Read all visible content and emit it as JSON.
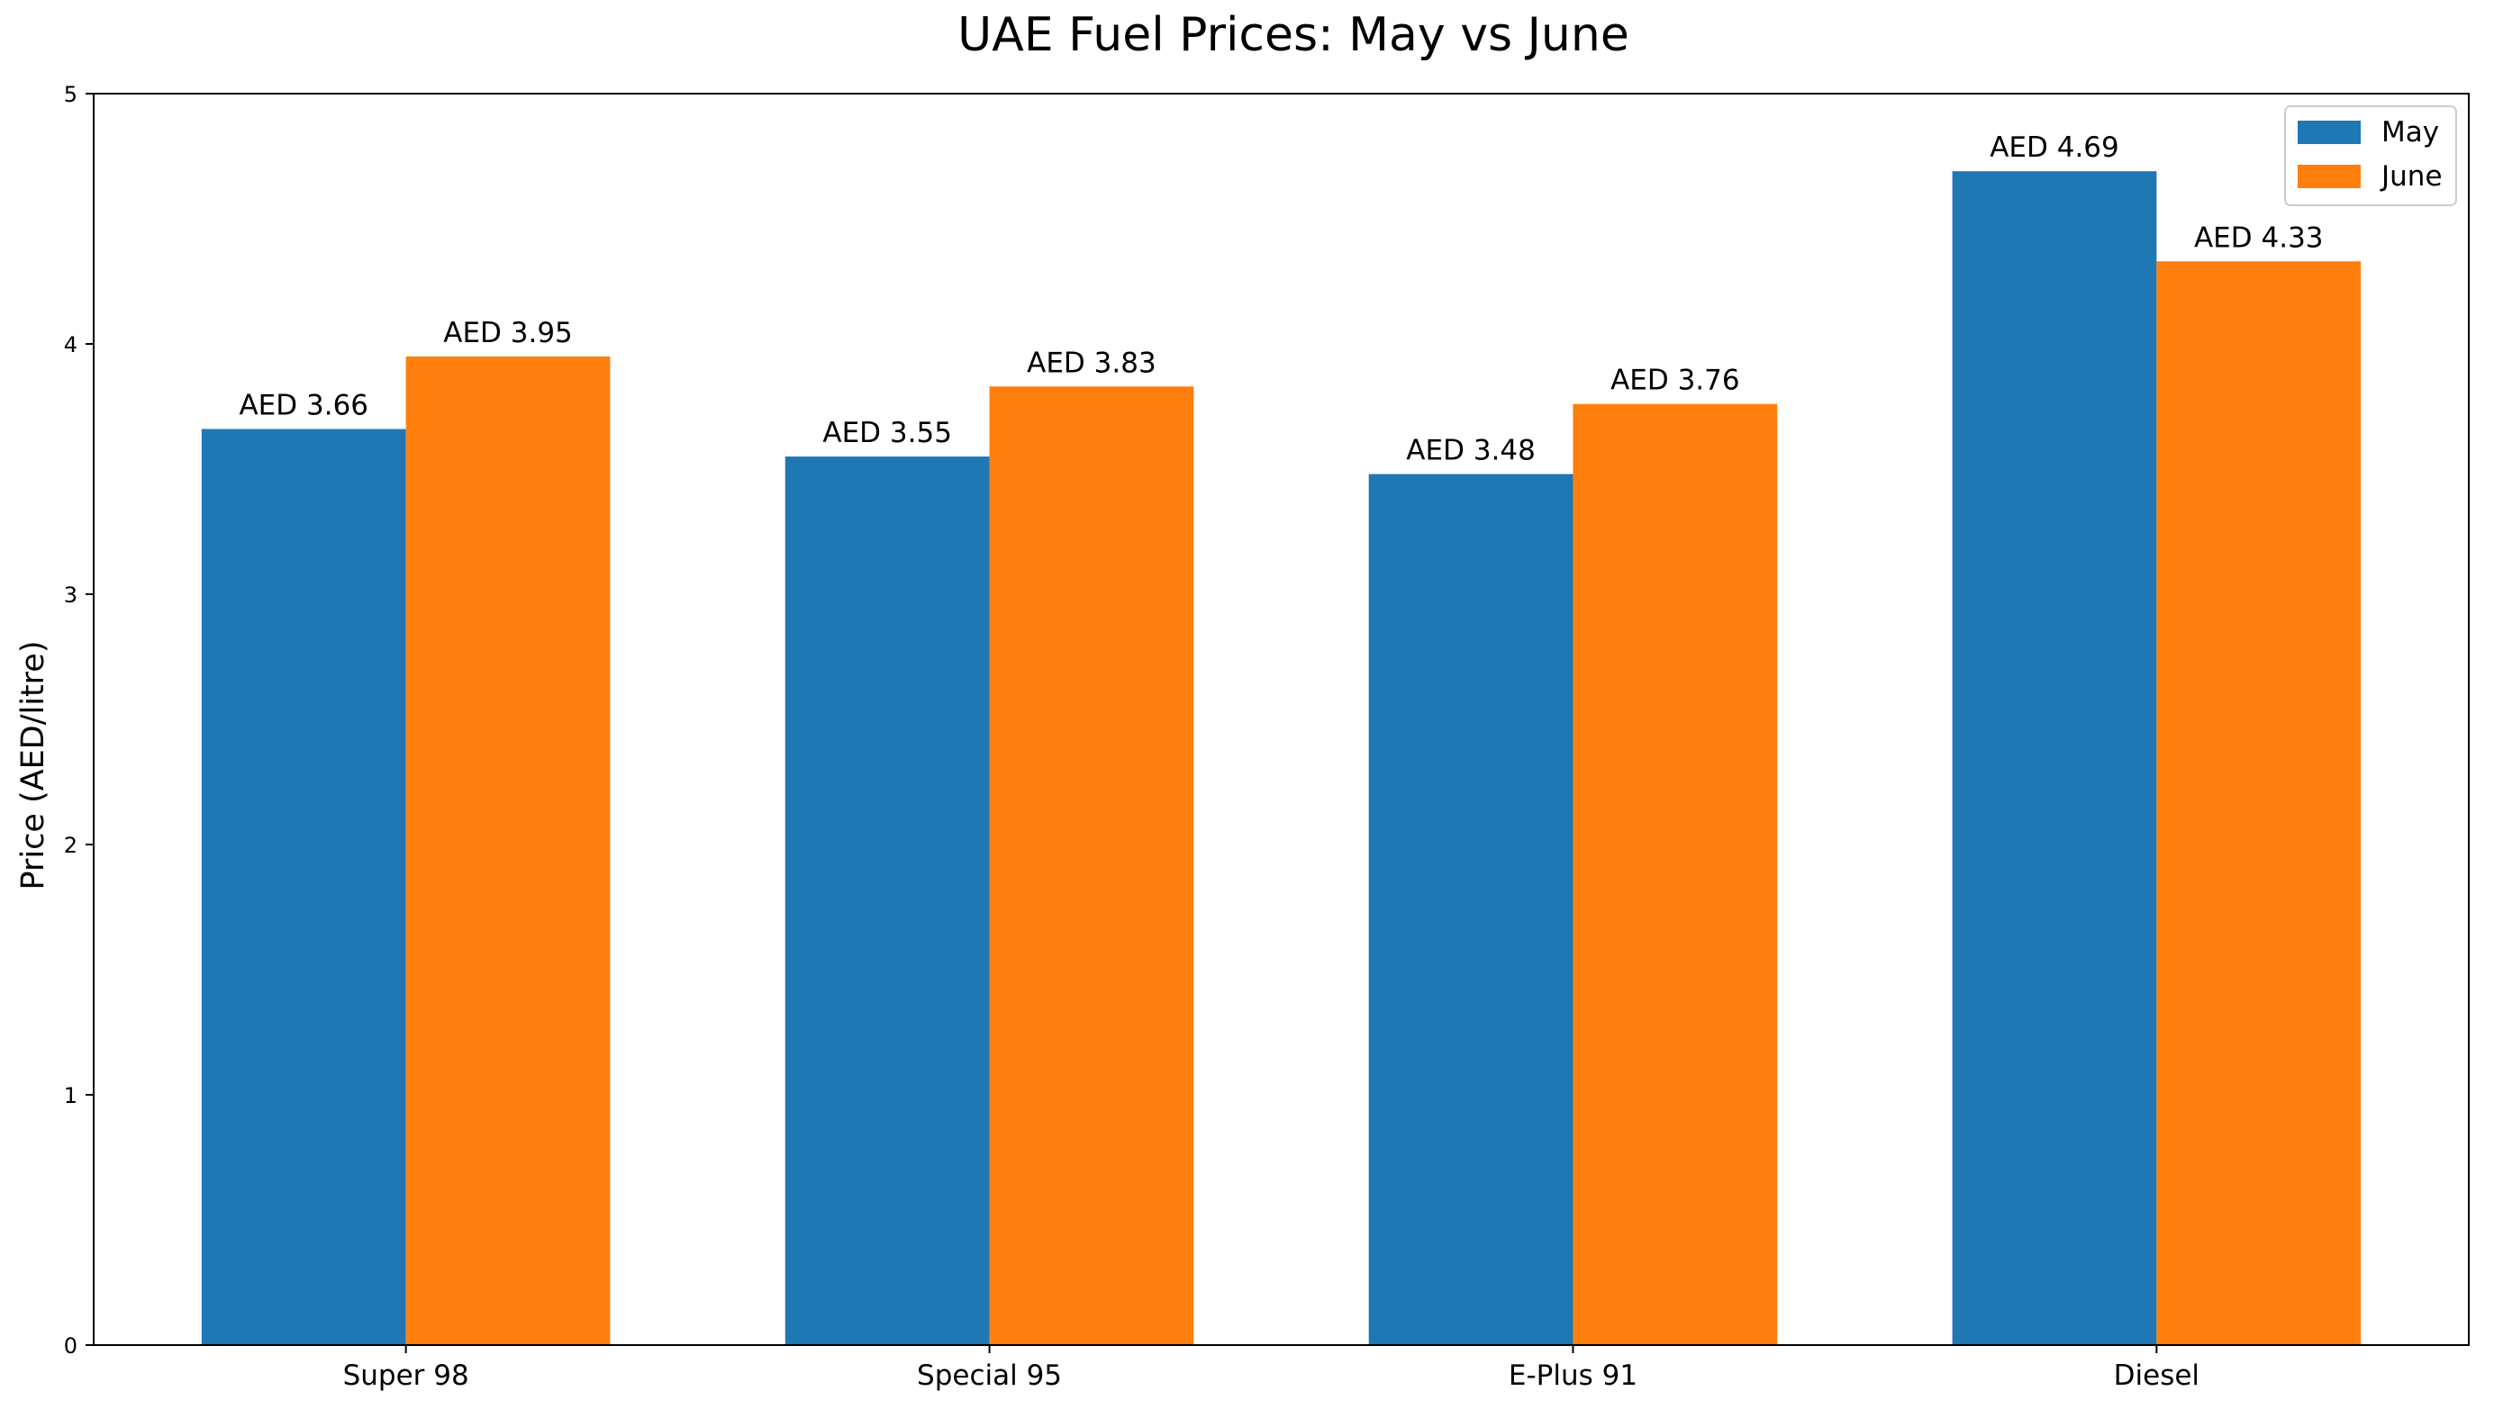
{
  "chart_data": {
    "type": "bar",
    "title": "UAE Fuel Prices: May vs June",
    "xlabel": "",
    "ylabel": "Price (AED/litre)",
    "categories": [
      "Super 98",
      "Special 95",
      "E-Plus 91",
      "Diesel"
    ],
    "series": [
      {
        "name": "May",
        "color": "#1f77b4",
        "values": [
          3.66,
          3.55,
          3.48,
          4.69
        ],
        "labels": [
          "AED 3.66",
          "AED 3.55",
          "AED 3.48",
          "AED 4.69"
        ]
      },
      {
        "name": "June",
        "color": "#ff7f0e",
        "values": [
          3.95,
          3.83,
          3.76,
          4.33
        ],
        "labels": [
          "AED 3.95",
          "AED 3.83",
          "AED 3.76",
          "AED 4.33"
        ]
      }
    ],
    "ylim": [
      0,
      5
    ],
    "yticks": [
      "0",
      "1",
      "2",
      "3",
      "4",
      "5"
    ],
    "grid": false,
    "legend_position": "top-right"
  }
}
